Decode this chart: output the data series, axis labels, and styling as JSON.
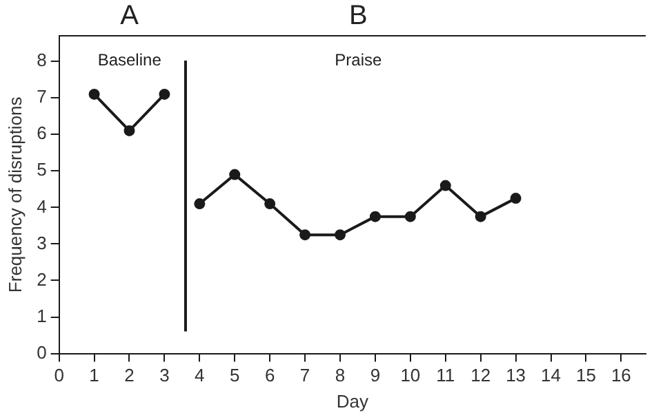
{
  "chart_data": {
    "type": "line",
    "xlabel": "Day",
    "ylabel": "Frequency of disruptions",
    "xlim": [
      0,
      16.7
    ],
    "xticks": [
      0,
      1,
      2,
      3,
      4,
      5,
      6,
      7,
      8,
      9,
      10,
      11,
      12,
      13,
      14,
      15,
      16
    ],
    "ylim": [
      0,
      8.7
    ],
    "yticks": [
      0,
      1,
      2,
      3,
      4,
      5,
      6,
      7,
      8
    ],
    "series": [
      {
        "color": "#1a1a1a",
        "x": [
          1,
          2,
          3
        ],
        "values": [
          7.1,
          6.1,
          7.1
        ]
      },
      {
        "color": "#1a1a1a",
        "x": [
          4,
          5,
          6,
          7,
          8,
          9,
          10,
          11,
          12,
          13
        ],
        "values": [
          4.1,
          4.9,
          4.1,
          3.25,
          3.25,
          3.75,
          3.75,
          4.6,
          3.75,
          4.25
        ]
      }
    ],
    "ref_lines": [
      {
        "axis": "x",
        "value": 3.6,
        "color": "#1a1a1a"
      }
    ],
    "annotations": [
      "A",
      "B",
      "Baseline",
      "Praise"
    ],
    "marker": "circle",
    "line_style": "solid",
    "grid": false,
    "legend": false
  }
}
